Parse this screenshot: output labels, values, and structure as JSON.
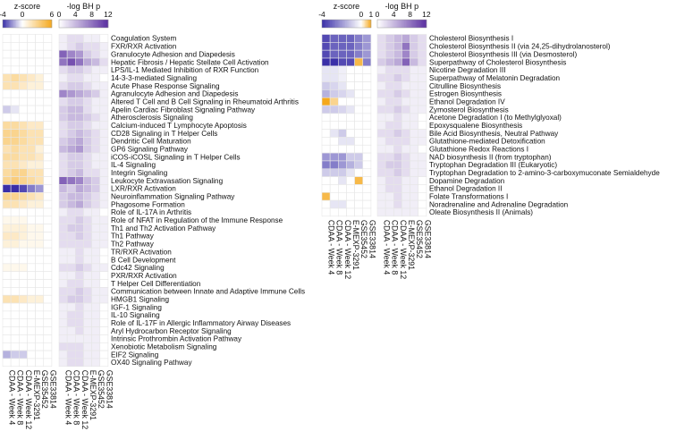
{
  "chart_data": [
    {
      "type": "heatmap",
      "panel": "left",
      "legends": {
        "z": {
          "title": "z-score",
          "ticks": [
            "-4",
            "0",
            "6"
          ],
          "range": [
            -4,
            6
          ]
        },
        "p": {
          "title": "-log BH p",
          "ticks": [
            "0",
            "4",
            "8",
            "12"
          ],
          "range": [
            0,
            12
          ]
        }
      },
      "columns": [
        "CDAA - Week 4",
        "CDAA - Week 8",
        "CDAA - Week 12",
        "E-MEXP-3291",
        "GSE35452",
        "GSE33814"
      ],
      "rows": [
        "Coagulation System",
        "FXR/RXR Activation",
        "Granulocyte Adhesion and Diapedesis",
        "Hepatic Fibrosis / Hepatic Stellate Cell Activation",
        "LPS/IL-1 Mediated Inhibition of RXR Function",
        "14-3-3-mediated Signaling",
        "Acute Phase Response Signaling",
        "Agranulocyte Adhesion and Diapedesis",
        "Altered T Cell and B Cell Signaling in Rheumatoid Arthritis",
        "Apelin Cardiac Fibroblast Signaling Pathway",
        "Atherosclerosis Signaling",
        "Calcium-induced T Lymphocyte Apoptosis",
        "CD28 Signaling in T Helper Cells",
        "Dendritic Cell Maturation",
        "GP6 Signaling Pathway",
        "iCOS-iCOSL Signaling in T Helper Cells",
        "IL-4 Signaling",
        "Integrin Signaling",
        "Leukocyte Extravasation Signaling",
        "LXR/RXR Activation",
        "Neuroinflammation Signaling Pathway",
        "Phagosome Formation",
        "Role of IL-17A in Arthritis",
        "Role of NFAT in Regulation of the Immune Response",
        "Th1 and Th2 Activation Pathway",
        "Th1 Pathway",
        "Th2 Pathway",
        "TR/RXR Activation",
        "B Cell Development",
        "Cdc42 Signaling",
        "PXR/RXR Activation",
        "T Helper Cell Differentiation",
        "Communication between Innate and Adaptive Immune Cells",
        "HMGB1 Signaling",
        "IGF-1 Signaling",
        "IL-10 Signaling",
        "Role of IL-17F in Allergic Inflammatory Airway Diseases",
        "Aryl Hydrocarbon Receptor Signaling",
        "Intrinsic Prothrombin Activation Pathway",
        "Xenobiotic Metabolism Signaling",
        "EIF2 Signaling",
        "OX40 Signaling Pathway"
      ],
      "zscore": [
        [
          0,
          0,
          0,
          0,
          0,
          0
        ],
        [
          0,
          0,
          0,
          0,
          0,
          0
        ],
        [
          0,
          0,
          0,
          0,
          0,
          0
        ],
        [
          0,
          0,
          0,
          0,
          0,
          0
        ],
        [
          0,
          0,
          0,
          0,
          0,
          0
        ],
        [
          2,
          2.5,
          2,
          1.5,
          1,
          0
        ],
        [
          2,
          2,
          1.5,
          1,
          1,
          0
        ],
        [
          0,
          0,
          0,
          0,
          0,
          0
        ],
        [
          0,
          0,
          0,
          0,
          0,
          0
        ],
        [
          -1,
          -0.5,
          0,
          0,
          0,
          0
        ],
        [
          0,
          0,
          0,
          0,
          0,
          0
        ],
        [
          2.5,
          2.5,
          2,
          1.5,
          1.5,
          0
        ],
        [
          3,
          3,
          2.5,
          2,
          2,
          0
        ],
        [
          3,
          3,
          2.5,
          2,
          2,
          0
        ],
        [
          2,
          2.5,
          2,
          2,
          1,
          0
        ],
        [
          2.5,
          2.5,
          2,
          2,
          1.5,
          0
        ],
        [
          2,
          2,
          1.5,
          1,
          1,
          0
        ],
        [
          2.5,
          3,
          3,
          2,
          2,
          0
        ],
        [
          3,
          3.5,
          3,
          2.5,
          2,
          0
        ],
        [
          -4,
          -4,
          -3.5,
          -2.5,
          -2,
          0
        ],
        [
          3,
          3,
          2.5,
          2,
          1.5,
          0
        ],
        [
          2,
          2,
          1.5,
          1,
          1,
          0
        ],
        [
          0,
          0,
          0,
          0,
          0,
          0
        ],
        [
          0.5,
          0.5,
          0.5,
          0,
          0,
          0
        ],
        [
          1,
          1,
          1,
          0.5,
          0.5,
          0
        ],
        [
          1.5,
          1.5,
          1,
          0.5,
          0.5,
          0
        ],
        [
          1,
          1,
          0.5,
          0.5,
          0.5,
          0
        ],
        [
          0,
          0,
          0,
          0,
          0,
          0
        ],
        [
          0,
          0,
          0,
          0,
          0,
          0
        ],
        [
          0.5,
          0.5,
          0.5,
          0,
          0,
          0
        ],
        [
          0,
          0,
          0,
          0,
          0,
          0
        ],
        [
          0,
          0,
          0,
          0,
          0,
          0
        ],
        [
          0,
          0,
          0,
          0,
          0,
          0
        ],
        [
          2,
          2,
          1.5,
          1,
          1,
          0
        ],
        [
          0,
          0,
          0,
          0,
          0,
          0
        ],
        [
          0,
          0,
          0,
          0,
          0,
          0
        ],
        [
          0,
          0,
          0,
          0,
          0,
          0
        ],
        [
          0,
          0,
          0,
          0,
          0,
          0
        ],
        [
          0,
          0,
          0,
          0,
          0,
          0
        ],
        [
          0,
          0,
          0,
          0,
          0,
          0
        ],
        [
          -1.5,
          -1,
          -1,
          0,
          0,
          0
        ],
        [
          0,
          0,
          0,
          0,
          0,
          0
        ]
      ],
      "neglogp": [
        [
          1,
          2,
          2,
          1,
          1,
          0
        ],
        [
          1,
          2,
          3,
          2,
          2,
          1
        ],
        [
          9,
          7,
          6,
          3,
          2,
          1
        ],
        [
          8,
          10,
          8,
          5,
          4,
          2
        ],
        [
          2,
          3,
          3,
          2,
          1,
          1
        ],
        [
          1,
          2,
          2,
          1,
          1,
          0
        ],
        [
          2,
          3,
          3,
          2,
          1,
          1
        ],
        [
          7,
          6,
          5,
          4,
          3,
          1
        ],
        [
          2,
          3,
          3,
          2,
          1,
          1
        ],
        [
          3,
          4,
          4,
          2,
          1,
          1
        ],
        [
          3,
          4,
          4,
          3,
          2,
          1
        ],
        [
          2,
          3,
          3,
          2,
          1,
          1
        ],
        [
          2,
          3,
          4,
          3,
          2,
          1
        ],
        [
          3,
          4,
          5,
          3,
          2,
          1
        ],
        [
          4,
          5,
          6,
          3,
          2,
          1
        ],
        [
          2,
          3,
          3,
          2,
          1,
          1
        ],
        [
          2,
          3,
          3,
          2,
          1,
          1
        ],
        [
          2,
          3,
          4,
          2,
          2,
          1
        ],
        [
          9,
          8,
          7,
          4,
          3,
          1
        ],
        [
          4,
          3,
          5,
          4,
          3,
          1
        ],
        [
          3,
          4,
          4,
          3,
          2,
          1
        ],
        [
          3,
          4,
          5,
          3,
          2,
          1
        ],
        [
          1,
          2,
          2,
          1,
          1,
          0
        ],
        [
          2,
          2,
          3,
          2,
          1,
          1
        ],
        [
          2,
          3,
          3,
          2,
          1,
          1
        ],
        [
          2,
          2,
          3,
          2,
          1,
          1
        ],
        [
          2,
          2,
          2,
          2,
          1,
          1
        ],
        [
          1,
          1,
          2,
          1,
          1,
          0
        ],
        [
          1,
          1,
          2,
          1,
          1,
          0
        ],
        [
          2,
          2,
          3,
          2,
          1,
          1
        ],
        [
          1,
          1,
          2,
          1,
          1,
          0
        ],
        [
          1,
          2,
          2,
          1,
          1,
          0
        ],
        [
          2,
          2,
          3,
          2,
          1,
          1
        ],
        [
          2,
          3,
          3,
          2,
          1,
          1
        ],
        [
          1,
          1,
          2,
          1,
          1,
          0
        ],
        [
          1,
          2,
          2,
          1,
          1,
          0
        ],
        [
          1,
          2,
          2,
          1,
          1,
          0
        ],
        [
          1,
          1,
          2,
          1,
          1,
          0
        ],
        [
          1,
          1,
          1,
          1,
          1,
          0
        ],
        [
          2,
          2,
          2,
          1,
          1,
          0
        ],
        [
          1,
          2,
          2,
          1,
          1,
          0
        ],
        [
          1,
          2,
          2,
          1,
          1,
          0
        ]
      ]
    },
    {
      "type": "heatmap",
      "panel": "right",
      "legends": {
        "z": {
          "title": "z-score",
          "ticks": [
            "-4",
            "0",
            "1"
          ],
          "range": [
            -4,
            1
          ]
        },
        "p": {
          "title": "-log BH p",
          "ticks": [
            "0",
            "4",
            "8",
            "12"
          ],
          "range": [
            0,
            12
          ]
        }
      },
      "columns": [
        "CDAA - Week 4",
        "CDAA - Week 8",
        "CDAA - Week 12",
        "E-MEXP-3291",
        "GSE35452",
        "GSE33814"
      ],
      "rows": [
        "Cholesterol Biosynthesis I",
        "Cholesterol Biosynthesis II (via 24,25-dihydrolanosterol)",
        "Cholesterol Biosynthesis III (via Desmosterol)",
        "Superpathway of Cholesterol Biosynthesis",
        "Nicotine Degradation III",
        "Superpathway of Melatonin Degradation",
        "Citrulline Biosynthesis",
        "Estrogen Biosynthesis",
        "Ethanol Degradation IV",
        "Zymosterol Biosynthesis",
        "Acetone Degradation I (to Methylglyoxal)",
        "Epoxysqualene Biosynthesis",
        "Bile Acid Biosynthesis, Neutral Pathway",
        "Glutathione-mediated Detoxification",
        "Glutathione Redox Reactions I",
        "NAD biosynthesis II (from tryptophan)",
        "Tryptophan Degradation III (Eukaryotic)",
        "Tryptophan Degradation to 2-amino-3-carboxymuconate Semialdehyde",
        "Dopamine Degradation",
        "Ethanol Degradation II",
        "Folate Transformations I",
        "Noradrenaline and Adrenaline Degradation",
        "Oleate Biosynthesis II (Animals)"
      ],
      "zscore": [
        [
          -3.5,
          -3,
          -3,
          -3,
          -2.5,
          -2
        ],
        [
          -3.5,
          -3,
          -3,
          -3,
          -2.5,
          -2
        ],
        [
          -3.5,
          -3,
          -3,
          -3,
          -2.5,
          -2
        ],
        [
          -4,
          -4,
          -3.5,
          -3.5,
          0.8,
          -2.5
        ],
        [
          -0.5,
          -0.5,
          -0.3,
          0,
          0,
          0
        ],
        [
          -0.5,
          -0.5,
          -0.3,
          0,
          0,
          0
        ],
        [
          -1,
          -0.8,
          -0.5,
          0,
          0,
          0
        ],
        [
          -1.5,
          -1,
          -0.8,
          -0.5,
          0,
          0
        ],
        [
          1,
          0.5,
          0,
          0,
          0,
          0
        ],
        [
          -1,
          -1,
          -0.8,
          -0.5,
          0,
          0
        ],
        [
          0,
          0,
          0,
          0,
          0,
          0
        ],
        [
          0,
          0,
          0,
          0,
          0,
          0
        ],
        [
          0,
          -0.5,
          -1,
          0,
          0,
          0
        ],
        [
          0,
          0,
          -0.5,
          -0.5,
          0,
          0
        ],
        [
          0,
          0,
          0,
          0,
          0,
          0
        ],
        [
          -2,
          -2,
          -2,
          -1,
          -1,
          0
        ],
        [
          -2.5,
          -2.5,
          -2,
          -1.5,
          -1,
          0
        ],
        [
          -1,
          -1,
          -1,
          -0.5,
          0,
          0
        ],
        [
          0,
          0,
          -0.5,
          0,
          0.8,
          0
        ],
        [
          0,
          0,
          0,
          0,
          0,
          0
        ],
        [
          0.8,
          0,
          0,
          0,
          0,
          0
        ],
        [
          0,
          -0.5,
          -0.5,
          0,
          0,
          0
        ],
        [
          0,
          0,
          0,
          0,
          0,
          0
        ]
      ],
      "neglogp": [
        [
          2,
          3,
          4,
          5,
          3,
          2
        ],
        [
          2,
          3,
          4,
          8,
          3,
          2
        ],
        [
          2,
          3,
          4,
          7,
          3,
          2
        ],
        [
          3,
          4,
          5,
          9,
          4,
          2
        ],
        [
          1,
          2,
          2,
          2,
          1,
          1
        ],
        [
          2,
          2,
          3,
          2,
          1,
          1
        ],
        [
          1,
          2,
          2,
          1,
          1,
          1
        ],
        [
          2,
          2,
          3,
          2,
          1,
          1
        ],
        [
          1,
          2,
          2,
          1,
          1,
          1
        ],
        [
          2,
          2,
          3,
          2,
          1,
          1
        ],
        [
          1,
          1,
          2,
          1,
          1,
          0
        ],
        [
          1,
          2,
          2,
          1,
          1,
          0
        ],
        [
          2,
          2,
          3,
          2,
          1,
          1
        ],
        [
          1,
          2,
          2,
          2,
          1,
          1
        ],
        [
          1,
          1,
          2,
          1,
          1,
          0
        ],
        [
          2,
          2,
          3,
          2,
          1,
          1
        ],
        [
          2,
          3,
          3,
          2,
          1,
          1
        ],
        [
          2,
          2,
          3,
          2,
          1,
          1
        ],
        [
          1,
          2,
          2,
          1,
          1,
          0
        ],
        [
          1,
          2,
          2,
          1,
          1,
          0
        ],
        [
          1,
          1,
          2,
          1,
          1,
          0
        ],
        [
          1,
          1,
          2,
          1,
          1,
          0
        ],
        [
          1,
          1,
          1,
          1,
          1,
          0
        ]
      ]
    }
  ],
  "colors": {
    "z_negative": "#3a2fa8",
    "z_mid": "#ffffff",
    "z_positive": "#f5a81c",
    "p_high": "#5a2ea0",
    "p_low": "#ffffff",
    "grid": "#e6e6e6"
  }
}
